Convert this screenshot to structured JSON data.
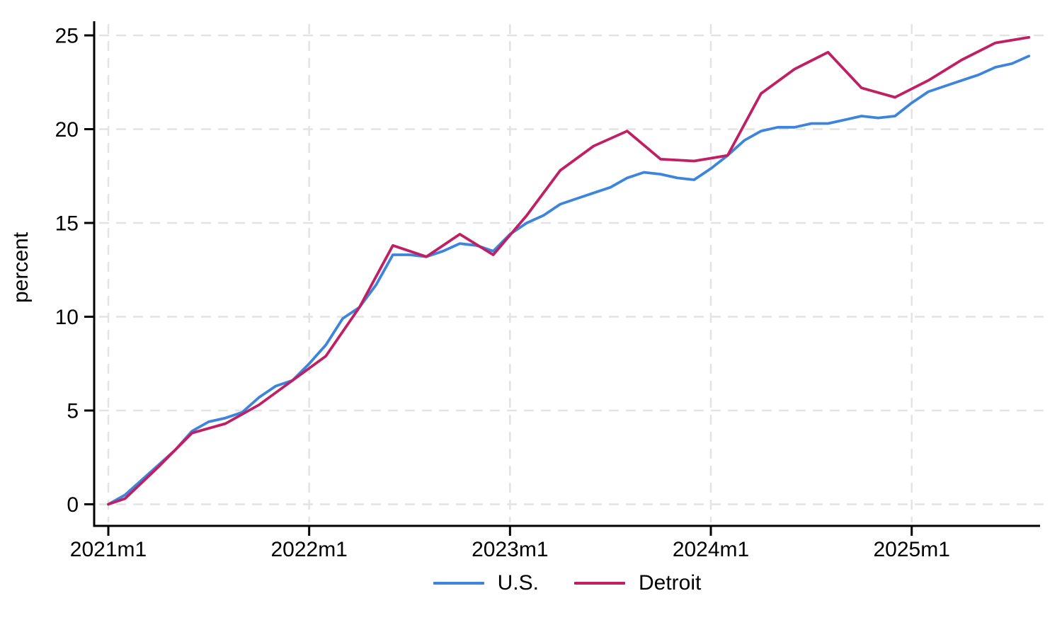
{
  "chart_data": {
    "type": "line",
    "title": "",
    "xlabel": "",
    "ylabel": "percent",
    "ylim": [
      0,
      25
    ],
    "yticks": [
      0,
      5,
      10,
      15,
      20,
      25
    ],
    "ytick_labels": [
      "0",
      "5",
      "10",
      "15",
      "20",
      "25"
    ],
    "xticks": [
      "2021m1",
      "2022m1",
      "2023m1",
      "2024m1",
      "2025m1"
    ],
    "x_start": "2021m1",
    "x_end": "2025m8",
    "grid": "dashed horizontal and vertical gridlines",
    "legend_position": "bottom-center",
    "colors": {
      "axis": "#000000",
      "gridline": "#e3e3e3",
      "background": "#ffffff"
    },
    "series": [
      {
        "name": "U.S.",
        "color": "#3d85dc",
        "months": [
          "2021m1",
          "2021m2",
          "2021m3",
          "2021m4",
          "2021m5",
          "2021m6",
          "2021m7",
          "2021m8",
          "2021m9",
          "2021m10",
          "2021m11",
          "2021m12",
          "2022m1",
          "2022m2",
          "2022m3",
          "2022m4",
          "2022m5",
          "2022m6",
          "2022m7",
          "2022m8",
          "2022m9",
          "2022m10",
          "2022m11",
          "2022m12",
          "2023m1",
          "2023m2",
          "2023m3",
          "2023m4",
          "2023m5",
          "2023m6",
          "2023m7",
          "2023m8",
          "2023m9",
          "2023m10",
          "2023m11",
          "2023m12",
          "2024m1",
          "2024m2",
          "2024m3",
          "2024m4",
          "2024m5",
          "2024m6",
          "2024m7",
          "2024m8",
          "2024m9",
          "2024m10",
          "2024m11",
          "2024m12",
          "2025m1",
          "2025m2",
          "2025m3",
          "2025m4",
          "2025m5",
          "2025m6",
          "2025m7",
          "2025m8"
        ],
        "values": [
          0.0,
          0.5,
          1.3,
          2.1,
          2.9,
          3.9,
          4.4,
          4.6,
          4.9,
          5.7,
          6.3,
          6.6,
          7.5,
          8.5,
          9.9,
          10.5,
          11.7,
          13.3,
          13.3,
          13.2,
          13.5,
          13.9,
          13.8,
          13.5,
          14.4,
          15.0,
          15.4,
          16.0,
          16.3,
          16.6,
          16.9,
          17.4,
          17.7,
          17.6,
          17.4,
          17.3,
          17.9,
          18.6,
          19.4,
          19.9,
          20.1,
          20.1,
          20.3,
          20.3,
          20.5,
          20.7,
          20.6,
          20.7,
          21.4,
          22.0,
          22.3,
          22.6,
          22.9,
          23.3,
          23.5,
          23.9
        ]
      },
      {
        "name": "Detroit",
        "color": "#c11f63",
        "months": [
          "2021m1",
          "2021m2",
          "2021m4",
          "2021m6",
          "2021m8",
          "2021m10",
          "2021m12",
          "2022m2",
          "2022m4",
          "2022m6",
          "2022m8",
          "2022m10",
          "2022m12",
          "2023m2",
          "2023m4",
          "2023m6",
          "2023m8",
          "2023m10",
          "2023m12",
          "2024m2",
          "2024m4",
          "2024m6",
          "2024m8",
          "2024m10",
          "2024m12",
          "2025m2",
          "2025m4",
          "2025m6",
          "2025m8"
        ],
        "values": [
          0.0,
          0.3,
          2.0,
          3.8,
          4.3,
          5.3,
          6.6,
          7.9,
          10.5,
          13.8,
          13.2,
          14.4,
          13.3,
          15.4,
          17.8,
          19.1,
          19.9,
          18.4,
          18.3,
          18.6,
          21.9,
          23.2,
          24.1,
          22.2,
          21.7,
          22.6,
          23.7,
          24.6,
          24.9
        ]
      }
    ]
  }
}
